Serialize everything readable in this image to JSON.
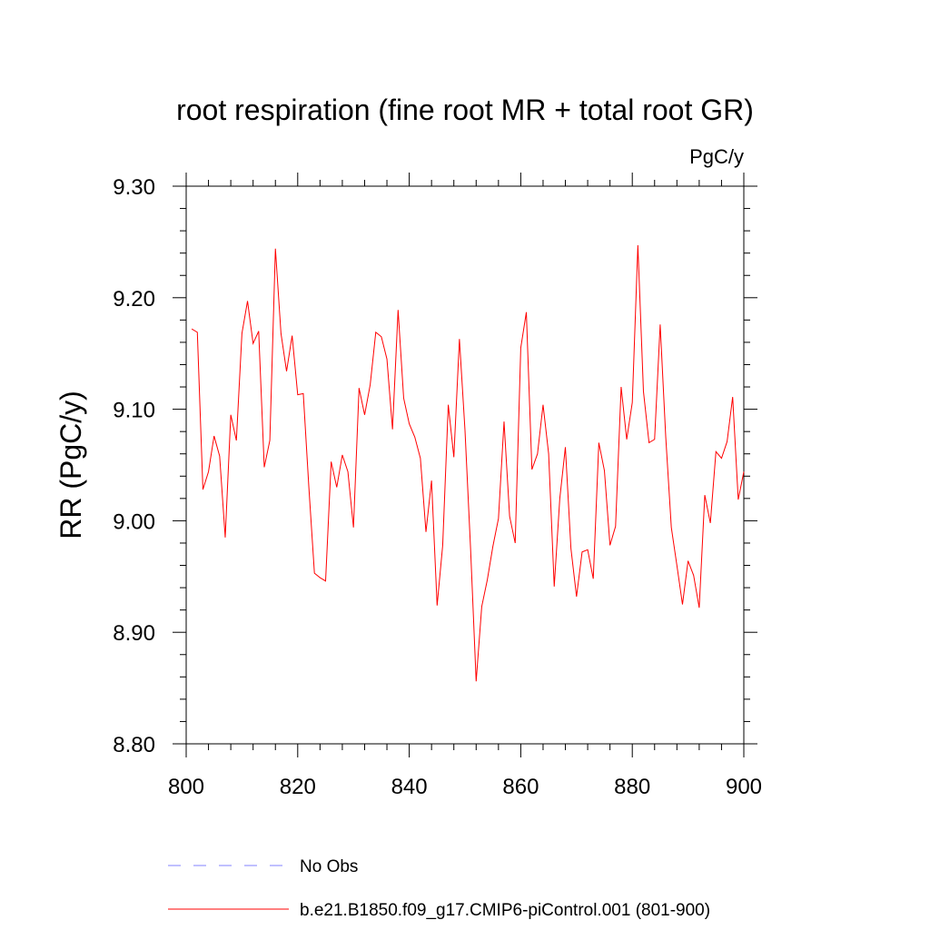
{
  "chart_data": {
    "type": "line",
    "title": "root respiration (fine root MR + total root GR)",
    "units_label": "PgC/y",
    "ylabel": "RR  (PgC/y)",
    "xlabel": "",
    "xlim": [
      800,
      900
    ],
    "ylim": [
      8.8,
      9.3
    ],
    "x_ticks": [
      800,
      820,
      840,
      860,
      880,
      900
    ],
    "x_tick_labels": [
      "800",
      "820",
      "840",
      "860",
      "880",
      "900"
    ],
    "y_ticks": [
      8.8,
      8.9,
      9.0,
      9.1,
      9.2,
      9.3
    ],
    "y_tick_labels": [
      "8.80",
      "8.90",
      "9.00",
      "9.10",
      "9.20",
      "9.30"
    ],
    "grid": false,
    "legend_position": "bottom",
    "legend": [
      {
        "label": "No Obs",
        "color": "#8080ff",
        "style": "dashed"
      },
      {
        "label": "b.e21.B1850.f09_g17.CMIP6-piControl.001 (801-900)",
        "color": "#ff0000",
        "style": "solid"
      }
    ],
    "series": [
      {
        "name": "b.e21.B1850.f09_g17.CMIP6-piControl.001 (801-900)",
        "color": "#ff0000",
        "x": [
          801,
          802,
          803,
          804,
          805,
          806,
          807,
          808,
          809,
          810,
          811,
          812,
          813,
          814,
          815,
          816,
          817,
          818,
          819,
          820,
          821,
          822,
          823,
          824,
          825,
          826,
          827,
          828,
          829,
          830,
          831,
          832,
          833,
          834,
          835,
          836,
          837,
          838,
          839,
          840,
          841,
          842,
          843,
          844,
          845,
          846,
          847,
          848,
          849,
          850,
          851,
          852,
          853,
          854,
          855,
          856,
          857,
          858,
          859,
          860,
          861,
          862,
          863,
          864,
          865,
          866,
          867,
          868,
          869,
          870,
          871,
          872,
          873,
          874,
          875,
          876,
          877,
          878,
          879,
          880,
          881,
          882,
          883,
          884,
          885,
          886,
          887,
          888,
          889,
          890,
          891,
          892,
          893,
          894,
          895,
          896,
          897,
          898,
          899,
          900
        ],
        "values": [
          9.172,
          9.169,
          9.028,
          9.044,
          9.076,
          9.058,
          8.985,
          9.095,
          9.072,
          9.168,
          9.197,
          9.159,
          9.17,
          9.048,
          9.072,
          9.244,
          9.168,
          9.134,
          9.166,
          9.113,
          9.114,
          9.03,
          8.953,
          8.949,
          8.946,
          9.053,
          9.03,
          9.059,
          9.044,
          8.994,
          9.119,
          9.095,
          9.122,
          9.169,
          9.165,
          9.145,
          9.082,
          9.189,
          9.11,
          9.087,
          9.075,
          9.056,
          8.99,
          9.036,
          8.924,
          8.978,
          9.104,
          9.057,
          9.163,
          9.081,
          8.975,
          8.856,
          8.923,
          8.947,
          8.977,
          9.002,
          9.089,
          9.004,
          8.98,
          9.155,
          9.187,
          9.046,
          9.06,
          9.104,
          9.06,
          8.941,
          9.02,
          9.066,
          8.975,
          8.932,
          8.972,
          8.974,
          8.948,
          9.07,
          9.045,
          8.978,
          8.995,
          9.12,
          9.073,
          9.106,
          9.247,
          9.116,
          9.07,
          9.073,
          9.176,
          9.075,
          8.994,
          8.96,
          8.925,
          8.964,
          8.951,
          8.922,
          9.023,
          8.998,
          9.062,
          9.056,
          9.071,
          9.111,
          9.019,
          9.044
        ]
      }
    ]
  }
}
